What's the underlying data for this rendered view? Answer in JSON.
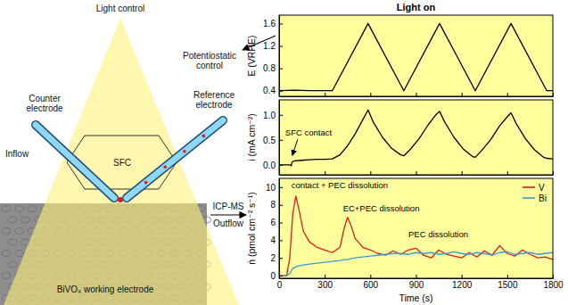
{
  "chart_data": [
    {
      "type": "line",
      "title": "Light on",
      "ylabel": "E (VRHE)",
      "color": "#000000",
      "x": [
        0,
        100,
        200,
        300,
        350,
        585,
        820,
        1055,
        1290,
        1525,
        1760,
        1800
      ],
      "values": [
        0.4,
        0.41,
        0.4,
        0.4,
        0.4,
        1.6,
        0.4,
        1.6,
        0.4,
        1.6,
        0.4,
        0.4
      ],
      "xlim": [
        0,
        1800
      ],
      "xticks": [
        0,
        300,
        600,
        900,
        1200,
        1500,
        1800
      ],
      "ylim": [
        0.3,
        1.75
      ],
      "yticks": [
        0.4,
        0.8,
        1.2,
        1.6
      ],
      "tick_labels": "y"
    },
    {
      "type": "line",
      "ylabel": "i (mA cm⁻²)",
      "color": "#000000",
      "annotations": [
        "SFC contact"
      ],
      "x": [
        0,
        40,
        70,
        80,
        85,
        100,
        150,
        200,
        250,
        300,
        350,
        400,
        450,
        500,
        550,
        585,
        620,
        680,
        740,
        800,
        820,
        860,
        920,
        980,
        1030,
        1055,
        1090,
        1150,
        1210,
        1270,
        1290,
        1330,
        1390,
        1450,
        1500,
        1525,
        1560,
        1620,
        1680,
        1740,
        1760,
        1800
      ],
      "values": [
        0,
        0,
        0,
        -0.02,
        0.05,
        0.08,
        0.09,
        0.1,
        0.11,
        0.11,
        0.12,
        0.2,
        0.38,
        0.62,
        0.9,
        1.1,
        0.85,
        0.55,
        0.33,
        0.2,
        0.18,
        0.3,
        0.52,
        0.8,
        1.0,
        1.07,
        0.85,
        0.55,
        0.32,
        0.17,
        0.15,
        0.28,
        0.5,
        0.78,
        0.96,
        1.04,
        0.82,
        0.52,
        0.3,
        0.15,
        0.13,
        0.12
      ],
      "xlim": [
        0,
        1800
      ],
      "xticks": [
        0,
        300,
        600,
        900,
        1200,
        1500,
        1800
      ],
      "ylim": [
        -0.2,
        1.3
      ],
      "yticks": [
        {
          "value": 0,
          "label": "0.0"
        },
        0.5,
        {
          "value": 1,
          "label": "1.0"
        }
      ],
      "tick_labels": "y"
    },
    {
      "type": "line",
      "xlabel": "Time (s)",
      "ylabel": "ṅ (pmol cm⁻² s⁻¹)",
      "legend": "upper right",
      "annotations": [
        "contact + PEC dissolution",
        "EC+PEC dissolution",
        "PEC dissolution"
      ],
      "x": [
        0,
        50,
        70,
        90,
        110,
        130,
        160,
        200,
        250,
        300,
        350,
        400,
        430,
        450,
        470,
        500,
        550,
        600,
        650,
        700,
        750,
        800,
        850,
        900,
        950,
        1000,
        1050,
        1100,
        1150,
        1200,
        1250,
        1300,
        1350,
        1400,
        1450,
        1500,
        1550,
        1600,
        1650,
        1700,
        1750,
        1800
      ],
      "series": [
        {
          "name": "V",
          "color": "#e41a1c",
          "values": [
            0,
            0,
            2,
            7,
            9,
            7.5,
            5,
            3.8,
            3.2,
            2.9,
            2.6,
            3.2,
            5.5,
            6.6,
            5.8,
            4.2,
            3.2,
            2.9,
            2.5,
            2.3,
            2.8,
            2.4,
            2.9,
            3.1,
            2.3,
            2.0,
            2.9,
            2.4,
            2.2,
            2.0,
            2.6,
            2.1,
            2.8,
            2.3,
            3.4,
            2.5,
            2.2,
            2.9,
            2.4,
            2.0,
            2.1,
            1.8
          ]
        },
        {
          "name": "Bi",
          "color": "#3a9ad9",
          "values": [
            0,
            0,
            0.2,
            0.8,
            1.0,
            1.1,
            1.2,
            1.3,
            1.4,
            1.5,
            1.6,
            1.7,
            1.8,
            1.8,
            1.9,
            2.0,
            2.1,
            2.2,
            2.3,
            2.4,
            2.5,
            2.5,
            2.4,
            2.6,
            2.5,
            2.6,
            2.4,
            2.5,
            2.7,
            2.5,
            2.4,
            2.6,
            2.5,
            2.3,
            2.6,
            2.7,
            2.4,
            2.5,
            2.6,
            2.4,
            2.5,
            2.6
          ]
        }
      ],
      "xlim": [
        0,
        1800
      ],
      "xticks": [
        0,
        300,
        600,
        900,
        1200,
        1500,
        1800
      ],
      "ylim": [
        -0.3,
        11
      ],
      "yticks": [
        0,
        2,
        4,
        6,
        8,
        10
      ]
    }
  ],
  "diagram": {
    "light_control": "Light control",
    "potentiostatic_control": [
      "Potentiostatic",
      "control"
    ],
    "reference_electrode": [
      "Reference",
      "electrode"
    ],
    "counter_electrode": [
      "Counter",
      "electrode"
    ],
    "inflow": "Inflow",
    "sfc": "SFC",
    "icp_ms": "ICP-MS",
    "outflow": "Outflow",
    "working_electrode": "BiVO₄ working electrode"
  }
}
